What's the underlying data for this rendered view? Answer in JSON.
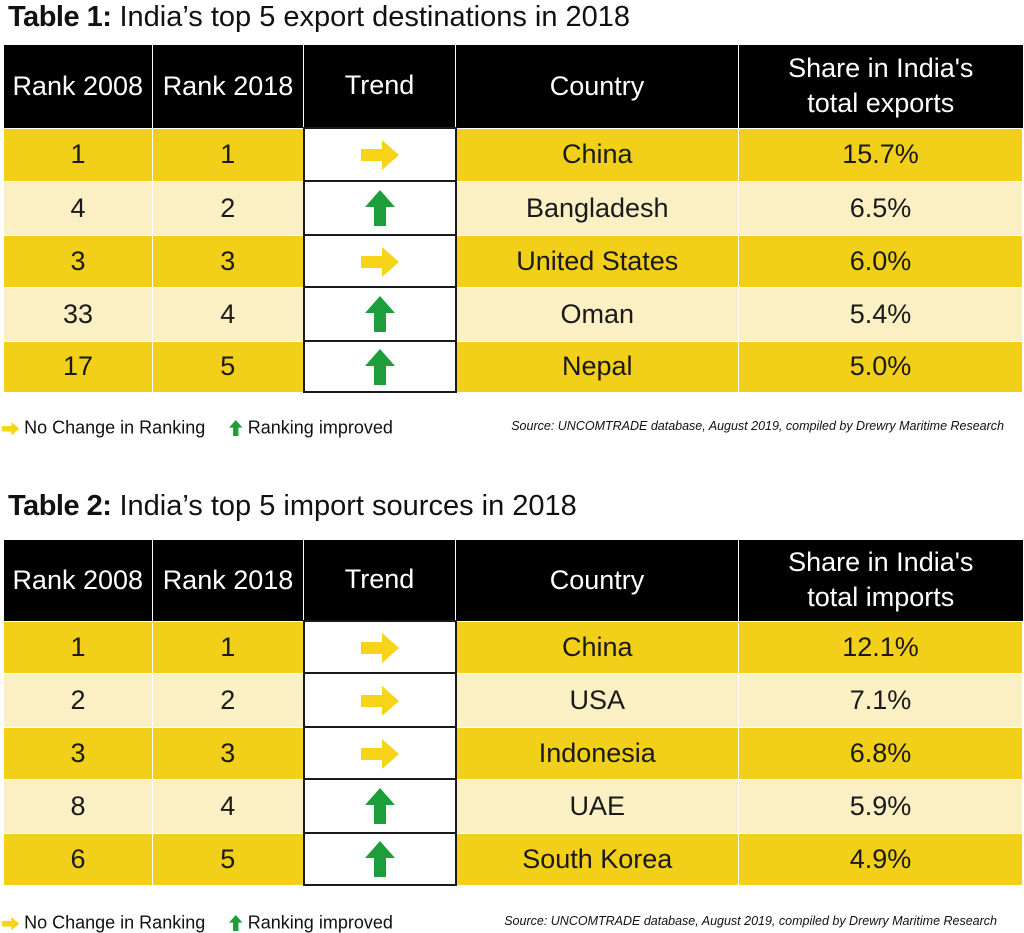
{
  "colors": {
    "header_bg": "#000000",
    "row_dark": "#f2cf19",
    "row_light": "#fbefc4",
    "arrow_yellow": "#f7d417",
    "arrow_green": "#1e9e3a"
  },
  "columns_template": [
    "Rank 2008",
    "Rank 2018",
    "Trend",
    "Country"
  ],
  "table1": {
    "title_label": "Table 1:",
    "title_text": " India’s top 5 export destinations in 2018",
    "headers": [
      "Rank 2008",
      "Rank 2018",
      "Trend",
      "Country",
      "Share in India's total exports"
    ],
    "rows": [
      {
        "rank2008": "1",
        "rank2018": "1",
        "trend": "no-change",
        "country": "China",
        "share": "15.7%"
      },
      {
        "rank2008": "4",
        "rank2018": "2",
        "trend": "improved",
        "country": "Bangladesh",
        "share": "6.5%"
      },
      {
        "rank2008": "3",
        "rank2018": "3",
        "trend": "no-change",
        "country": "United States",
        "share": "6.0%"
      },
      {
        "rank2008": "33",
        "rank2018": "4",
        "trend": "improved",
        "country": "Oman",
        "share": "5.4%"
      },
      {
        "rank2008": "17",
        "rank2018": "5",
        "trend": "improved",
        "country": "Nepal",
        "share": "5.0%"
      }
    ],
    "legend_no_change": "No Change in Ranking",
    "legend_improved": "Ranking improved",
    "source": "Source: UNCOMTRADE database, August 2019, compiled by Drewry Maritime Research"
  },
  "table2": {
    "title_label": "Table 2:",
    "title_text": " India’s top 5 import sources in 2018",
    "headers": [
      "Rank 2008",
      "Rank 2018",
      "Trend",
      "Country",
      "Share in India's total imports"
    ],
    "rows": [
      {
        "rank2008": "1",
        "rank2018": "1",
        "trend": "no-change",
        "country": "China",
        "share": "12.1%"
      },
      {
        "rank2008": "2",
        "rank2018": "2",
        "trend": "no-change",
        "country": "USA",
        "share": "7.1%"
      },
      {
        "rank2008": "3",
        "rank2018": "3",
        "trend": "no-change",
        "country": "Indonesia",
        "share": "6.8%"
      },
      {
        "rank2008": "8",
        "rank2018": "4",
        "trend": "improved",
        "country": "UAE",
        "share": "5.9%"
      },
      {
        "rank2008": "6",
        "rank2018": "5",
        "trend": "improved",
        "country": "South Korea",
        "share": "4.9%"
      }
    ],
    "legend_no_change": "No Change in Ranking",
    "legend_improved": "Ranking improved",
    "source": "Source: UNCOMTRADE database, August 2019, compiled by Drewry Maritime Research"
  }
}
